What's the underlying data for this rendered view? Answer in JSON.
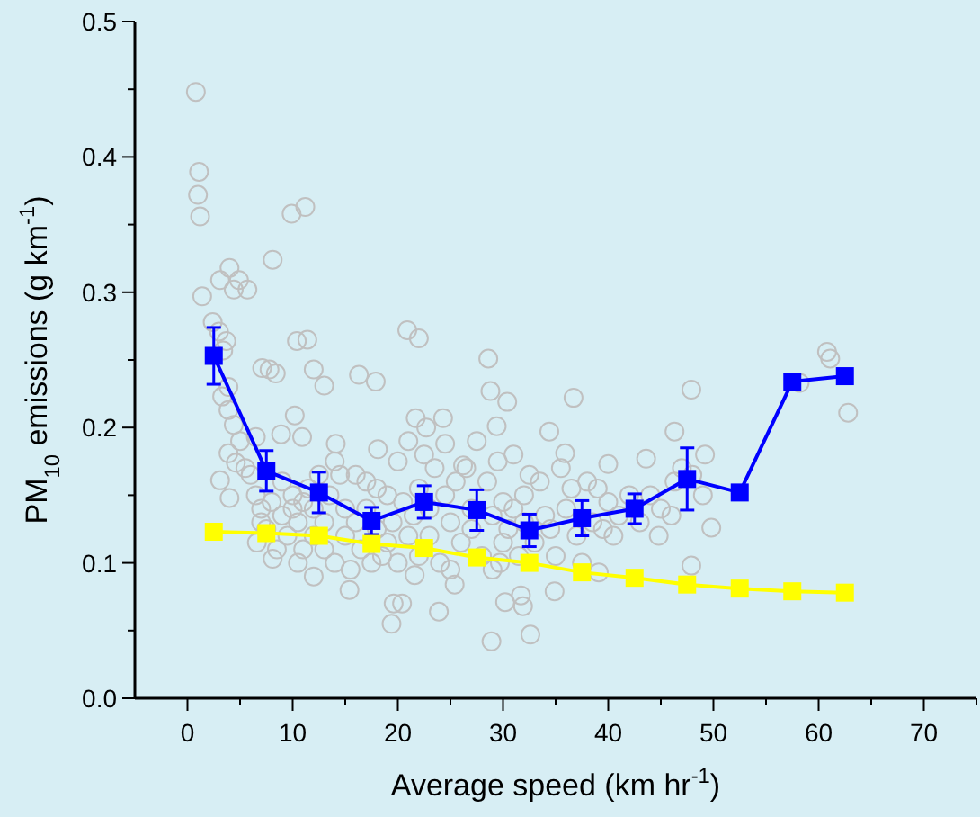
{
  "chart_data": {
    "type": "line",
    "xlabel": "Average speed (km hr$^{-1}$)",
    "ylabel": "PM$_{10}$ emissions (g km$^{-1}$)",
    "xlim": [
      -5,
      75
    ],
    "ylim": [
      0,
      0.5
    ],
    "xticks": [
      0,
      {
        "value": 5,
        "label": null
      },
      10,
      {
        "value": 15,
        "label": null
      },
      20,
      {
        "value": 25,
        "label": null
      },
      30,
      {
        "value": 35,
        "label": null
      },
      40,
      {
        "value": 45,
        "label": null
      },
      50,
      {
        "value": 55,
        "label": null
      },
      60,
      {
        "value": 65,
        "label": null
      },
      70,
      {
        "value": 75,
        "label": null
      }
    ],
    "yticks": [
      {
        "value": 0,
        "label": "0.0"
      },
      {
        "value": 0.05,
        "label": null
      },
      0.1,
      {
        "value": 0.15,
        "label": null
      },
      0.2,
      {
        "value": 0.25,
        "label": null
      },
      0.3,
      {
        "value": 0.35,
        "label": null
      },
      0.4,
      {
        "value": 0.45,
        "label": null
      },
      0.5
    ],
    "grid": false,
    "series": [
      {
        "type": "scatter",
        "color": "#c0c0c0",
        "marker": "circle",
        "x": [
          0.8,
          1.1,
          1.0,
          1.2,
          1.4,
          3.1,
          4.0,
          4.4,
          4.9,
          5.7,
          8.1,
          9.9,
          11.2,
          2.4,
          3.0,
          3.7,
          3.4,
          3.9,
          3.3,
          3.9,
          4.4,
          6.5,
          3.9,
          4.6,
          3.1,
          4.0,
          7.1,
          7.8,
          8.4,
          10.4,
          11.4,
          12.0,
          13.0,
          8.9,
          10.2,
          10.9,
          14.1,
          16.3,
          17.9,
          18.1,
          20.9,
          22.0,
          21.7,
          24.3,
          22.7,
          24.5,
          28.6,
          28.8,
          30.4,
          29.4,
          26.2,
          34.4,
          36.7,
          35.9,
          40.0,
          43.6,
          46.3,
          47.9,
          49.2,
          49.8,
          47.9,
          44.8,
          46.3,
          60.8,
          61.1,
          62.8,
          58.2,
          19.6,
          20.4,
          19.4,
          23.9,
          28.9,
          32.6,
          31.9,
          30.2,
          31.7,
          34.9,
          39.1,
          15.4,
          12.0,
          8.1,
          6.6,
          21.6,
          25.4,
          29.7,
          5,
          5.5,
          6,
          6.5,
          7,
          7,
          7.5,
          8,
          8.5,
          9,
          9,
          9.5,
          10,
          10,
          10.5,
          10.5,
          11,
          11,
          11.5,
          12,
          12,
          12.5,
          13,
          13,
          13.5,
          14,
          14,
          14.5,
          15,
          15,
          15.5,
          16,
          16,
          16.5,
          17,
          17,
          17.5,
          18,
          18,
          18.5,
          19,
          19,
          19.5,
          20,
          20,
          20.5,
          21,
          21,
          21.5,
          22,
          22,
          22.5,
          23,
          23,
          23.5,
          24,
          24.5,
          25,
          25,
          25.5,
          26,
          26.5,
          27,
          27,
          27.5,
          28,
          28.5,
          29,
          29,
          29.5,
          30,
          30,
          30.5,
          31,
          31,
          31.5,
          32,
          32,
          32.5,
          33,
          33.5,
          34,
          34.5,
          35,
          35.5,
          36,
          36.5,
          37,
          37.5,
          38,
          38.5,
          39,
          39.5,
          40,
          40.5,
          41,
          42,
          43,
          44,
          45,
          46,
          47,
          48,
          49
        ],
        "values": [
          0.448,
          0.389,
          0.372,
          0.356,
          0.297,
          0.309,
          0.318,
          0.302,
          0.309,
          0.302,
          0.324,
          0.358,
          0.363,
          0.278,
          0.271,
          0.264,
          0.257,
          0.23,
          0.223,
          0.213,
          0.202,
          0.193,
          0.181,
          0.174,
          0.161,
          0.148,
          0.244,
          0.243,
          0.24,
          0.264,
          0.265,
          0.243,
          0.231,
          0.195,
          0.209,
          0.193,
          0.188,
          0.239,
          0.234,
          0.184,
          0.272,
          0.266,
          0.207,
          0.207,
          0.2,
          0.188,
          0.251,
          0.227,
          0.219,
          0.201,
          0.172,
          0.197,
          0.222,
          0.181,
          0.173,
          0.177,
          0.197,
          0.228,
          0.18,
          0.126,
          0.098,
          0.12,
          0.16,
          0.256,
          0.251,
          0.211,
          0.233,
          0.07,
          0.07,
          0.055,
          0.064,
          0.042,
          0.047,
          0.068,
          0.071,
          0.076,
          0.079,
          0.093,
          0.08,
          0.09,
          0.103,
          0.115,
          0.091,
          0.084,
          0.1,
          0.19,
          0.17,
          0.165,
          0.15,
          0.14,
          0.13,
          0.125,
          0.145,
          0.11,
          0.16,
          0.135,
          0.12,
          0.15,
          0.14,
          0.1,
          0.13,
          0.145,
          0.11,
          0.155,
          0.12,
          0.14,
          0.165,
          0.13,
          0.11,
          0.15,
          0.175,
          0.1,
          0.165,
          0.12,
          0.14,
          0.095,
          0.165,
          0.13,
          0.11,
          0.16,
          0.14,
          0.1,
          0.155,
          0.125,
          0.105,
          0.15,
          0.115,
          0.13,
          0.175,
          0.1,
          0.145,
          0.19,
          0.12,
          0.135,
          0.155,
          0.105,
          0.18,
          0.14,
          0.12,
          0.17,
          0.1,
          0.15,
          0.13,
          0.095,
          0.16,
          0.115,
          0.17,
          0.14,
          0.125,
          0.19,
          0.105,
          0.16,
          0.135,
          0.095,
          0.175,
          0.145,
          0.115,
          0.125,
          0.14,
          0.18,
          0.105,
          0.15,
          0.13,
          0.165,
          0.115,
          0.16,
          0.135,
          0.125,
          0.105,
          0.17,
          0.14,
          0.155,
          0.12,
          0.1,
          0.16,
          0.13,
          0.155,
          0.125,
          0.145,
          0.12,
          0.135,
          0.15,
          0.13,
          0.15,
          0.14,
          0.135,
          0.17,
          0.165,
          0.15
        ]
      },
      {
        "color": "#0000ff",
        "marker": "square",
        "x": [
          2.5,
          7.5,
          12.5,
          17.5,
          22.5,
          27.5,
          32.5,
          37.5,
          42.5,
          47.5,
          52.5,
          57.5,
          62.5
        ],
        "values": [
          0.253,
          0.168,
          0.152,
          0.131,
          0.145,
          0.139,
          0.124,
          0.133,
          0.14,
          0.162,
          0.152,
          0.234,
          0.238
        ],
        "errors": [
          0.021,
          0.015,
          0.015,
          0.01,
          0.012,
          0.015,
          0.012,
          0.013,
          0.011,
          0.023,
          null,
          null,
          null
        ]
      },
      {
        "color": "#ffff00",
        "marker": "square",
        "x": [
          2.5,
          7.5,
          12.5,
          17.5,
          22.5,
          27.5,
          32.5,
          37.5,
          42.5,
          47.5,
          52.5,
          57.5,
          62.5
        ],
        "values": [
          0.123,
          0.122,
          0.12,
          0.114,
          0.111,
          0.104,
          0.1,
          0.093,
          0.089,
          0.084,
          0.081,
          0.079,
          0.078
        ]
      }
    ]
  }
}
